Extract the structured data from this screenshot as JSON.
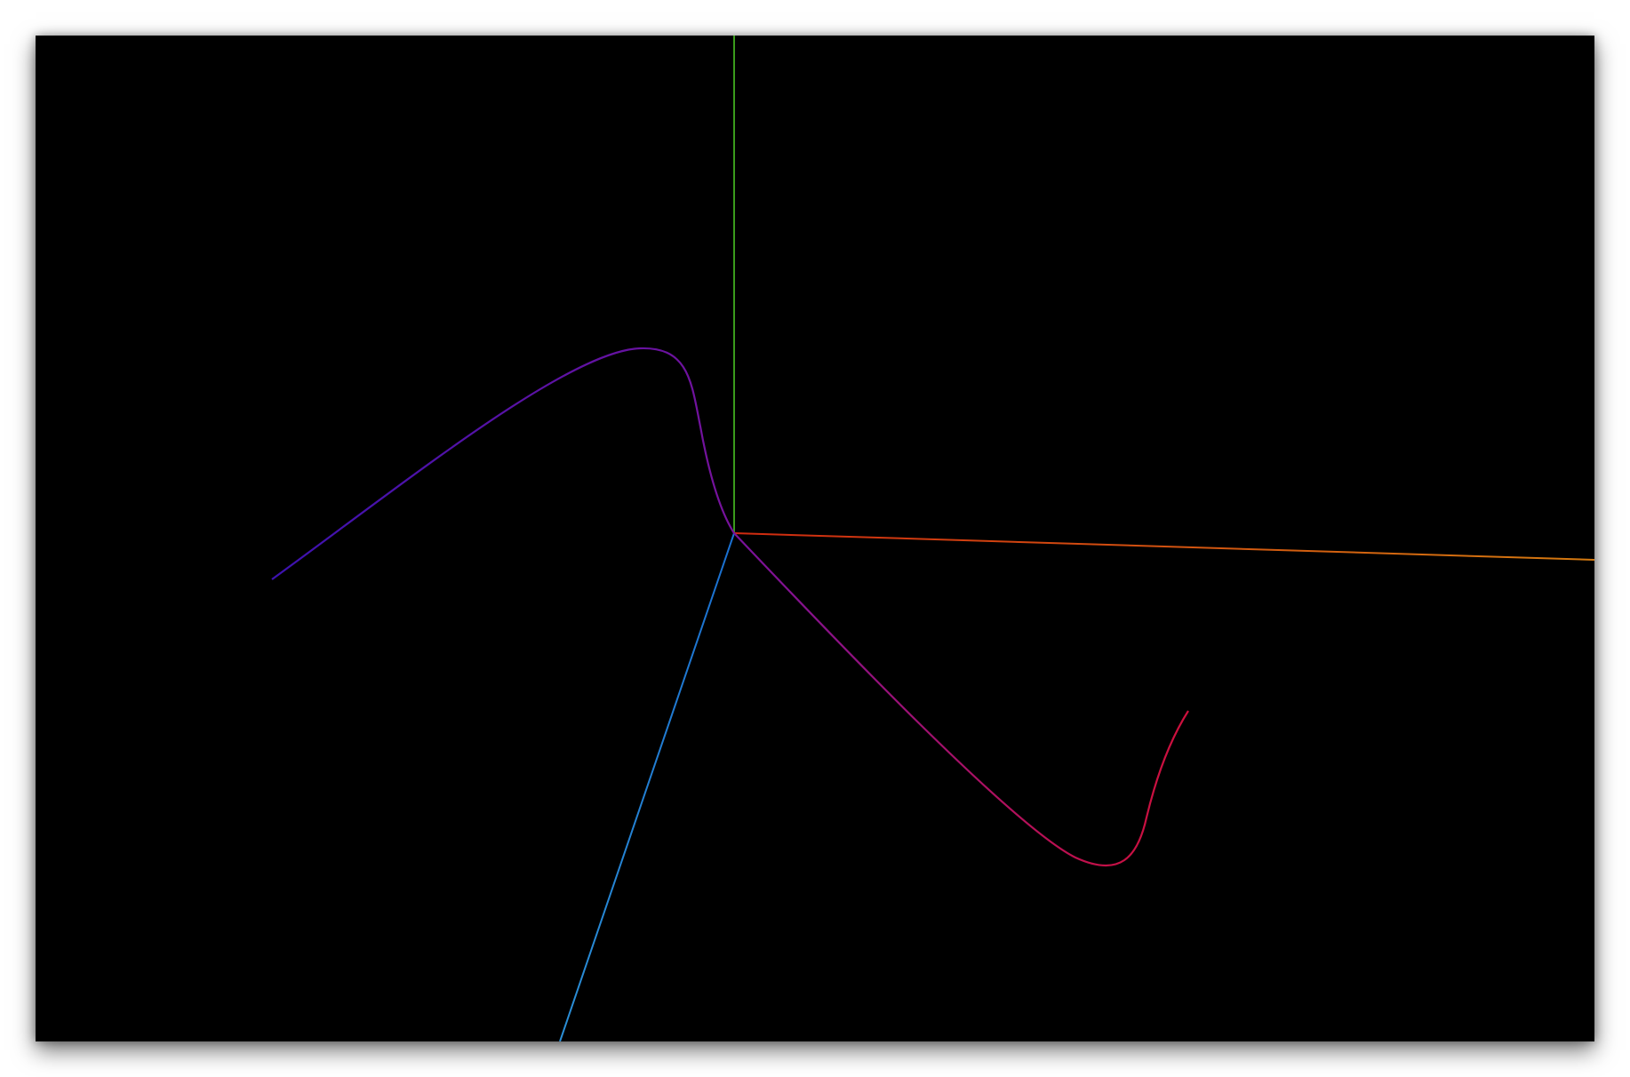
{
  "window": {
    "background": "#000000"
  },
  "scene": {
    "x_axis": {
      "color_start": "#d02a10",
      "color_end": "#d47a10"
    },
    "y_axis": {
      "color_start": "#3a9b1c",
      "color_end": "#3a9b1c"
    },
    "z_axis": {
      "color_start": "#1a6fd0",
      "color_end": "#2b8fd6"
    },
    "curve": {
      "color_start": "#3a12b0",
      "color_mid": "#7a129a",
      "color_end": "#d0103a"
    }
  }
}
